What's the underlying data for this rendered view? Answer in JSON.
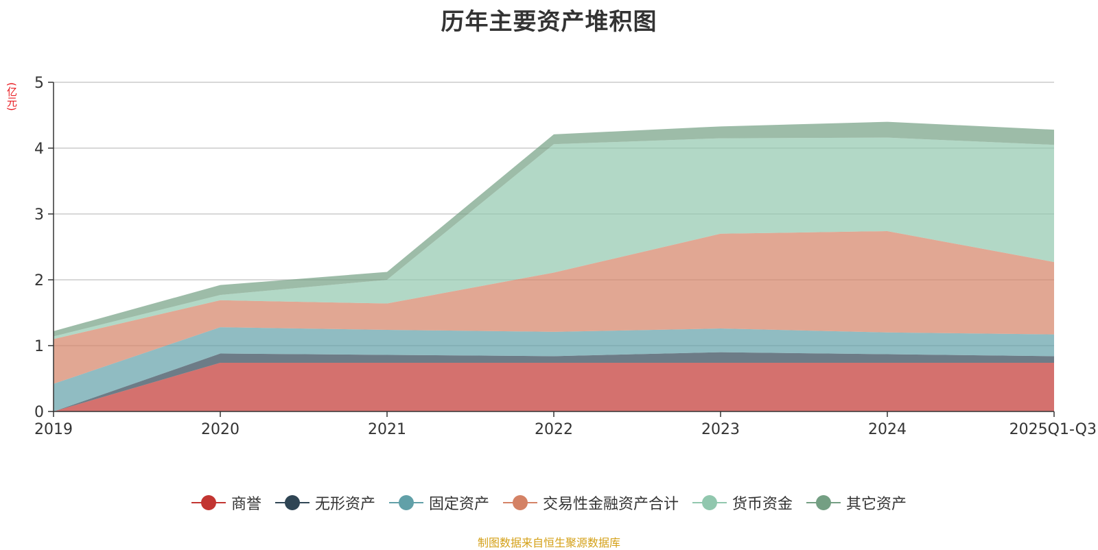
{
  "title": "历年主要资产堆积图",
  "unit_label": "(亿元)",
  "source_text": "制图数据来自恒生聚源数据库",
  "chart_data": {
    "type": "area",
    "stacked": true,
    "title": "历年主要资产堆积图",
    "ylabel": "(亿元)",
    "x": [
      "2019",
      "2020",
      "2021",
      "2022",
      "2023",
      "2024",
      "2025Q1-Q3"
    ],
    "ylim": [
      0,
      5
    ],
    "yticks": [
      0,
      1,
      2,
      3,
      4,
      5
    ],
    "grid": true,
    "legend_position": "bottom",
    "series": [
      {
        "name": "商誉",
        "color": "#c23531",
        "values": [
          0.0,
          0.74,
          0.74,
          0.74,
          0.74,
          0.74,
          0.74
        ]
      },
      {
        "name": "无形资产",
        "color": "#2f4554",
        "values": [
          0.0,
          0.14,
          0.12,
          0.1,
          0.16,
          0.13,
          0.1
        ]
      },
      {
        "name": "固定资产",
        "color": "#61a0a8",
        "values": [
          0.42,
          0.4,
          0.38,
          0.37,
          0.36,
          0.33,
          0.33
        ]
      },
      {
        "name": "交易性金融资产合计",
        "color": "#d48265",
        "values": [
          0.68,
          0.41,
          0.4,
          0.9,
          1.44,
          1.54,
          1.1
        ]
      },
      {
        "name": "货币资金",
        "color": "#91c7ae",
        "values": [
          0.04,
          0.08,
          0.36,
          1.95,
          1.45,
          1.42,
          1.78
        ]
      },
      {
        "name": "其它资产",
        "color": "#749f83",
        "values": [
          0.08,
          0.15,
          0.12,
          0.15,
          0.18,
          0.24,
          0.23
        ]
      }
    ]
  }
}
